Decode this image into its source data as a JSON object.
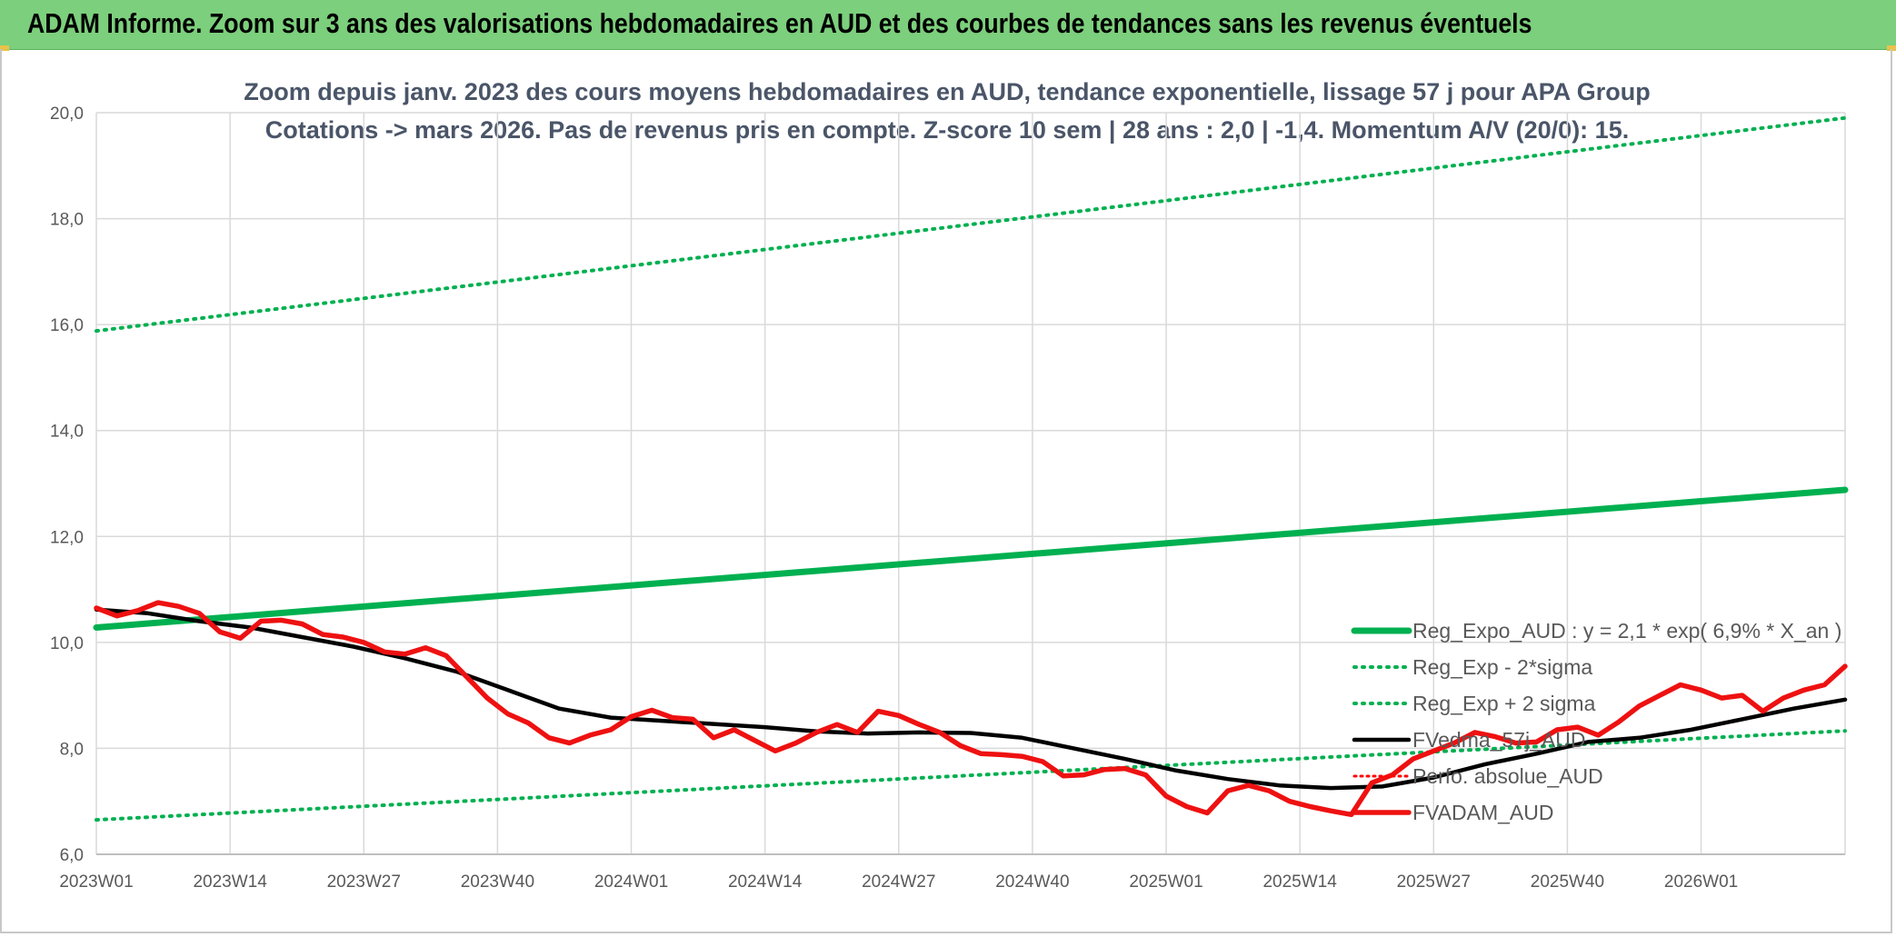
{
  "header": {
    "title": "ADAM Informe. Zoom sur 3 ans des valorisations hebdomadaires en AUD et des courbes de tendances sans les revenus éventuels"
  },
  "colors": {
    "reg_expo": "#00b050",
    "sigma": "#00b050",
    "fvedma": "#000000",
    "perfo": "#ff0000",
    "fvadam": "#ee1111",
    "grid": "#d9d9d9"
  },
  "chart_data": {
    "type": "line",
    "title_lines": [
      "Zoom depuis janv. 2023 des cours moyens hebdomadaires en AUD, tendance exponentielle, lissage 57 j pour APA Group",
      "Cotations -> mars 2026. Pas de revenus pris en compte. Z-score 10 sem | 28 ans : 2,0 | -1,4. Momentum A/V (20/0): 15."
    ],
    "ylim": [
      6,
      20
    ],
    "y_ticks": [
      "6,0",
      "8,0",
      "10,0",
      "12,0",
      "14,0",
      "16,0",
      "18,0",
      "20,0"
    ],
    "y_tick_values": [
      6,
      8,
      10,
      12,
      14,
      16,
      18,
      20
    ],
    "x_ticks": [
      "2023W01",
      "2023W14",
      "2023W27",
      "2023W40",
      "2024W01",
      "2024W14",
      "2024W27",
      "2024W40",
      "2025W01",
      "2025W14",
      "2025W27",
      "2025W40",
      "2026W01"
    ],
    "x_tick_index": [
      0,
      13,
      26,
      39,
      52,
      65,
      78,
      91,
      104,
      117,
      130,
      143,
      156
    ],
    "n_weeks": 170,
    "legend": [
      {
        "name": "Reg_Expo_AUD : y = 2,1 * exp( 6,9% *  X_an )",
        "style": "thick"
      },
      {
        "name": "Reg_Exp - 2*sigma",
        "style": "green-dotted"
      },
      {
        "name": "Reg_Exp + 2 sigma",
        "style": "green-dotted"
      },
      {
        "name": "FVedma_57j_AUD",
        "style": "black"
      },
      {
        "name": "Perfo. absolue_AUD",
        "style": "red-dotted"
      },
      {
        "name": "FVADAM_AUD",
        "style": "red"
      }
    ],
    "series": [
      {
        "name": "Reg_Expo_AUD : y = 2,1 * exp( 6,9% *  X_an )",
        "x": [
          0,
          170
        ],
        "values": [
          10.28,
          12.88
        ]
      },
      {
        "name": "Reg_Exp - 2*sigma",
        "x": [
          0,
          170
        ],
        "values": [
          6.65,
          8.33
        ]
      },
      {
        "name": "Reg_Exp + 2 sigma",
        "x": [
          0,
          170
        ],
        "values": [
          15.88,
          19.9
        ]
      },
      {
        "name": "FVedma_57j_AUD",
        "x": [
          0,
          5,
          10,
          15,
          20,
          25,
          30,
          35,
          40,
          45,
          50,
          55,
          60,
          65,
          70,
          75,
          80,
          85,
          90,
          95,
          100,
          105,
          110,
          115,
          120,
          125,
          130,
          135,
          140,
          145,
          150,
          155,
          160,
          165,
          170
        ],
        "values": [
          10.62,
          10.55,
          10.4,
          10.28,
          10.1,
          9.92,
          9.7,
          9.45,
          9.1,
          8.75,
          8.58,
          8.52,
          8.46,
          8.4,
          8.32,
          8.28,
          8.3,
          8.29,
          8.2,
          8.0,
          7.8,
          7.58,
          7.42,
          7.3,
          7.25,
          7.28,
          7.45,
          7.7,
          7.9,
          8.12,
          8.2,
          8.35,
          8.55,
          8.75,
          8.92
        ]
      },
      {
        "name": "FVADAM_AUD",
        "x": [
          0,
          2,
          4,
          6,
          8,
          10,
          12,
          14,
          16,
          18,
          20,
          22,
          24,
          26,
          28,
          30,
          32,
          34,
          36,
          38,
          40,
          42,
          44,
          46,
          48,
          50,
          52,
          54,
          56,
          58,
          60,
          62,
          64,
          66,
          68,
          70,
          72,
          74,
          76,
          78,
          80,
          82,
          84,
          86,
          88,
          90,
          92,
          94,
          96,
          98,
          100,
          102,
          104,
          106,
          108,
          110,
          112,
          114,
          116,
          118,
          120,
          122,
          124,
          126,
          128,
          130,
          132,
          134,
          136,
          138,
          140,
          142,
          144,
          146,
          148,
          150,
          152,
          154,
          156,
          158,
          160,
          162,
          164,
          166,
          168,
          170
        ],
        "values": [
          10.65,
          10.5,
          10.6,
          10.75,
          10.68,
          10.55,
          10.2,
          10.08,
          10.4,
          10.42,
          10.35,
          10.15,
          10.1,
          10.0,
          9.82,
          9.78,
          9.9,
          9.75,
          9.35,
          8.95,
          8.65,
          8.48,
          8.2,
          8.1,
          8.25,
          8.35,
          8.6,
          8.72,
          8.58,
          8.55,
          8.2,
          8.35,
          8.15,
          7.95,
          8.1,
          8.3,
          8.45,
          8.3,
          8.7,
          8.62,
          8.45,
          8.3,
          8.05,
          7.9,
          7.88,
          7.85,
          7.75,
          7.48,
          7.5,
          7.6,
          7.62,
          7.5,
          7.1,
          6.9,
          6.78,
          7.2,
          7.3,
          7.2,
          7.0,
          6.9,
          6.82,
          6.75,
          7.35,
          7.5,
          7.8,
          7.95,
          8.1,
          8.3,
          8.22,
          8.1,
          8.12,
          8.35,
          8.4,
          8.25,
          8.5,
          8.8,
          9.0,
          9.2,
          9.1,
          8.95,
          9.0,
          8.7,
          8.95,
          9.1,
          9.2,
          9.55
        ]
      }
    ],
    "grid": "horizontal",
    "legend_position": "right"
  }
}
